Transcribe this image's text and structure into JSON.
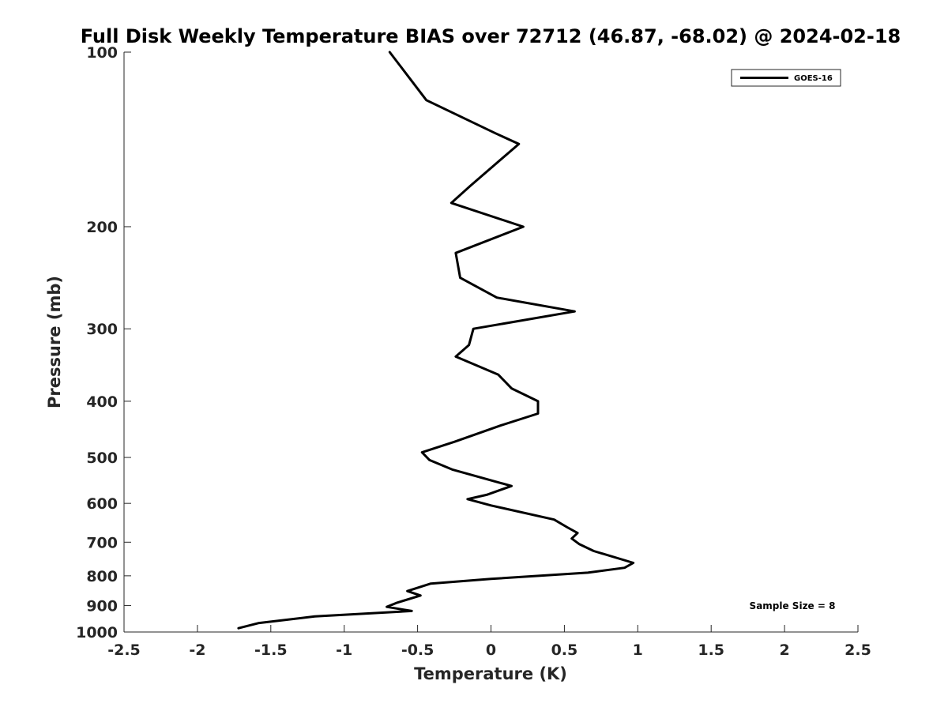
{
  "chart_data": {
    "type": "line",
    "title": "Full Disk Weekly Temperature BIAS over 72712 (46.87, -68.02) @ 2024-02-18",
    "xlabel": "Temperature (K)",
    "ylabel": "Pressure (mb)",
    "xlim": [
      -2.5,
      2.5
    ],
    "ylim": [
      100,
      1000
    ],
    "y_scale": "log",
    "y_reversed": true,
    "x_ticks": [
      "-2.5",
      "-2",
      "-1.5",
      "-1",
      "-0.5",
      "0",
      "0.5",
      "1",
      "1.5",
      "2",
      "2.5"
    ],
    "y_ticks": [
      "100",
      "200",
      "300",
      "400",
      "500",
      "600",
      "700",
      "800",
      "900",
      "1000"
    ],
    "grid": false,
    "legend_position": "top-right",
    "series": [
      {
        "name": "GOES-16",
        "color": "#000000",
        "points": [
          {
            "x": -0.69,
            "p": 100
          },
          {
            "x": -0.44,
            "p": 121
          },
          {
            "x": 0.03,
            "p": 138
          },
          {
            "x": 0.19,
            "p": 144
          },
          {
            "x": -0.14,
            "p": 170
          },
          {
            "x": -0.27,
            "p": 182
          },
          {
            "x": 0.22,
            "p": 200
          },
          {
            "x": -0.24,
            "p": 222
          },
          {
            "x": -0.21,
            "p": 245
          },
          {
            "x": 0.04,
            "p": 265
          },
          {
            "x": 0.57,
            "p": 280
          },
          {
            "x": -0.12,
            "p": 300
          },
          {
            "x": -0.15,
            "p": 320
          },
          {
            "x": -0.24,
            "p": 335
          },
          {
            "x": 0.05,
            "p": 360
          },
          {
            "x": 0.14,
            "p": 380
          },
          {
            "x": 0.32,
            "p": 400
          },
          {
            "x": 0.32,
            "p": 420
          },
          {
            "x": 0.07,
            "p": 440
          },
          {
            "x": -0.25,
            "p": 470
          },
          {
            "x": -0.47,
            "p": 490
          },
          {
            "x": -0.42,
            "p": 505
          },
          {
            "x": -0.26,
            "p": 525
          },
          {
            "x": 0.14,
            "p": 560
          },
          {
            "x": -0.03,
            "p": 580
          },
          {
            "x": -0.16,
            "p": 590
          },
          {
            "x": 0.0,
            "p": 605
          },
          {
            "x": 0.43,
            "p": 640
          },
          {
            "x": 0.52,
            "p": 660
          },
          {
            "x": 0.59,
            "p": 675
          },
          {
            "x": 0.55,
            "p": 690
          },
          {
            "x": 0.6,
            "p": 705
          },
          {
            "x": 0.7,
            "p": 725
          },
          {
            "x": 0.97,
            "p": 760
          },
          {
            "x": 0.91,
            "p": 775
          },
          {
            "x": 0.66,
            "p": 790
          },
          {
            "x": 0.0,
            "p": 810
          },
          {
            "x": -0.41,
            "p": 825
          },
          {
            "x": -0.57,
            "p": 850
          },
          {
            "x": -0.48,
            "p": 865
          },
          {
            "x": -0.64,
            "p": 890
          },
          {
            "x": -0.71,
            "p": 905
          },
          {
            "x": -0.54,
            "p": 920
          },
          {
            "x": -1.2,
            "p": 940
          },
          {
            "x": -1.58,
            "p": 965
          },
          {
            "x": -1.72,
            "p": 985
          }
        ]
      }
    ],
    "annotation": "Sample Size = 8"
  }
}
